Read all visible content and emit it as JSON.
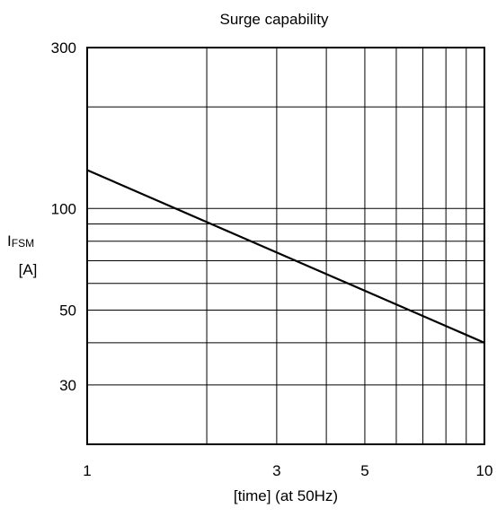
{
  "chart_data": {
    "type": "line",
    "title": "Surge capability",
    "xlabel": "[time] (at 50Hz)",
    "ylabel": {
      "main": "I",
      "subscript": "FSM",
      "unit": "[A]"
    },
    "x_scale": "log",
    "y_scale": "log",
    "xlim": [
      1,
      10
    ],
    "ylim": [
      20,
      300
    ],
    "x_ticks": [
      {
        "value": 1,
        "label": "1"
      },
      {
        "value": 3,
        "label": "3"
      },
      {
        "value": 5,
        "label": "5"
      },
      {
        "value": 10,
        "label": "10"
      }
    ],
    "y_ticks": [
      {
        "value": 300,
        "label": "300"
      },
      {
        "value": 100,
        "label": "100"
      },
      {
        "value": 50,
        "label": "50"
      },
      {
        "value": 30,
        "label": "30"
      }
    ],
    "x_gridlines": [
      2,
      3,
      4,
      5,
      6,
      7,
      8,
      9
    ],
    "y_gridlines": [
      30,
      40,
      50,
      60,
      70,
      80,
      90,
      100,
      200
    ],
    "grid": true,
    "series": [
      {
        "x": [
          1,
          10
        ],
        "y": [
          130,
          40
        ]
      }
    ],
    "colors": {
      "line": "#000000",
      "grid": "#000000",
      "background": "#ffffff"
    }
  }
}
